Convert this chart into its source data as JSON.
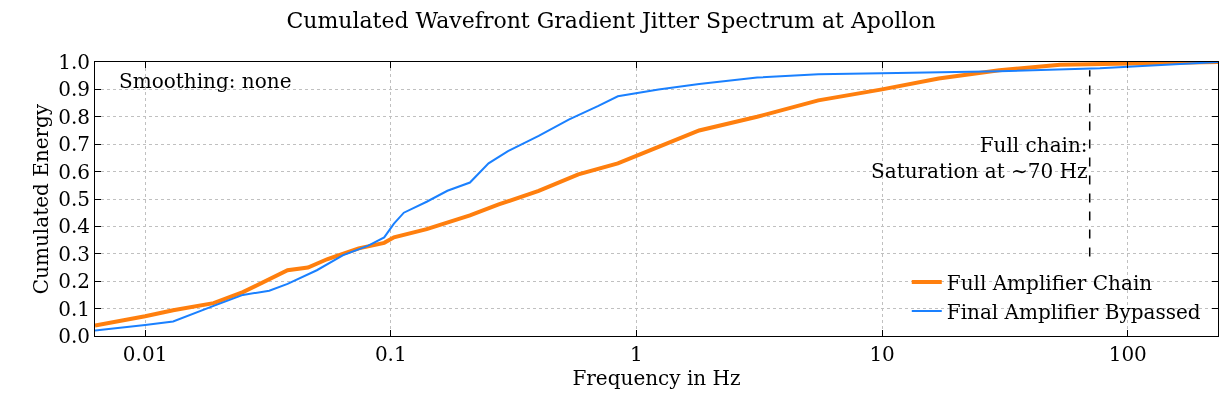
{
  "chart_data": {
    "type": "line",
    "title": "Cumulated Wavefront Gradient Jitter Spectrum at Apollon",
    "xlabel": "Frequency in Hz",
    "ylabel": "Cumulated Energy",
    "log": "x",
    "xlim": [
      0.00625,
      233
    ],
    "xticks": [
      0.01,
      0.1,
      1,
      10,
      100
    ],
    "ylim": [
      0,
      1
    ],
    "yticks": [
      {
        "value": 0,
        "label": "0.0"
      },
      0.1,
      0.2,
      0.3,
      0.4,
      0.5,
      0.6,
      0.7,
      0.8,
      0.9,
      {
        "value": 1,
        "label": "1.0"
      }
    ],
    "grid": true,
    "legend": "bottom right",
    "line_style": "solid",
    "marker": "none",
    "annotations": [
      "Smoothing: none"
    ],
    "ref_lines": [
      {
        "axis": "x",
        "value": 70,
        "label": "Full chain:\nSaturation at ∼70 Hz",
        "color": "#000000",
        "line_style": "dashed"
      }
    ],
    "series": [
      {
        "name": "Full Amplifier Chain",
        "color": "#ff7f0e",
        "x": [
          0.00625,
          0.01,
          0.013,
          0.019,
          0.025,
          0.038,
          0.046,
          0.055,
          0.074,
          0.094,
          0.103,
          0.14,
          0.21,
          0.275,
          0.4,
          0.58,
          0.84,
          1.23,
          1.8,
          3.1,
          5.5,
          10,
          17,
          30,
          53,
          233
        ],
        "values": [
          0.038,
          0.072,
          0.094,
          0.12,
          0.16,
          0.24,
          0.25,
          0.28,
          0.32,
          0.34,
          0.36,
          0.39,
          0.44,
          0.48,
          0.53,
          0.59,
          0.63,
          0.69,
          0.75,
          0.8,
          0.86,
          0.9,
          0.94,
          0.97,
          0.99,
          1.0
        ]
      },
      {
        "name": "Final Amplifier Bypassed",
        "color": "#1a80ff",
        "x": [
          0.00625,
          0.01,
          0.013,
          0.019,
          0.025,
          0.032,
          0.038,
          0.05,
          0.064,
          0.081,
          0.094,
          0.103,
          0.113,
          0.14,
          0.17,
          0.21,
          0.25,
          0.3,
          0.4,
          0.53,
          0.7,
          0.84,
          1.23,
          1.8,
          3.1,
          5.5,
          11.5,
          30,
          77,
          233
        ],
        "values": [
          0.02,
          0.04,
          0.053,
          0.11,
          0.15,
          0.165,
          0.19,
          0.24,
          0.295,
          0.33,
          0.36,
          0.41,
          0.45,
          0.49,
          0.53,
          0.56,
          0.63,
          0.675,
          0.73,
          0.79,
          0.84,
          0.875,
          0.9,
          0.92,
          0.943,
          0.955,
          0.96,
          0.966,
          0.977,
          1.0
        ]
      }
    ]
  }
}
